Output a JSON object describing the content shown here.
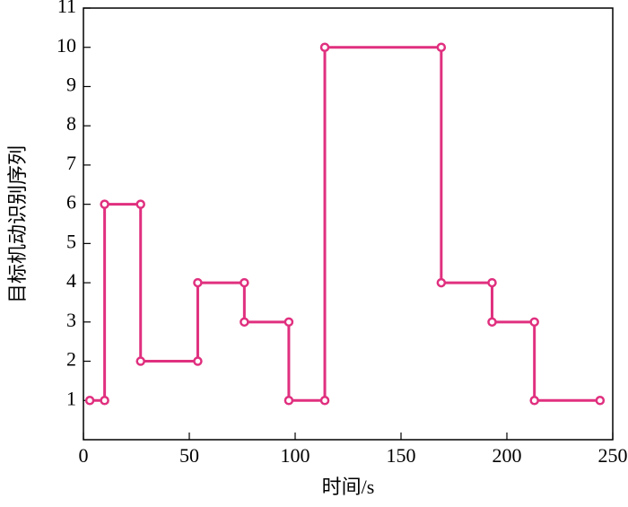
{
  "chart_data": {
    "type": "line",
    "xlabel": "时间/s",
    "ylabel": "目标机动识别序列",
    "x": [
      3,
      10,
      10,
      27,
      27,
      54,
      54,
      76,
      76,
      97,
      97,
      114,
      114,
      169,
      169,
      193,
      193,
      213,
      213,
      244
    ],
    "series": [
      {
        "color": "#e0307f",
        "values": [
          1,
          1,
          6,
          6,
          2,
          2,
          4,
          4,
          3,
          3,
          1,
          1,
          10,
          10,
          4,
          4,
          3,
          3,
          1,
          1
        ]
      }
    ],
    "xlim": [
      0,
      250
    ],
    "xticks": [
      0,
      50,
      100,
      150,
      200,
      250
    ],
    "ylim": [
      0,
      11
    ],
    "yticks": [
      1,
      2,
      3,
      4,
      5,
      6,
      7,
      8,
      9,
      10,
      11
    ]
  }
}
